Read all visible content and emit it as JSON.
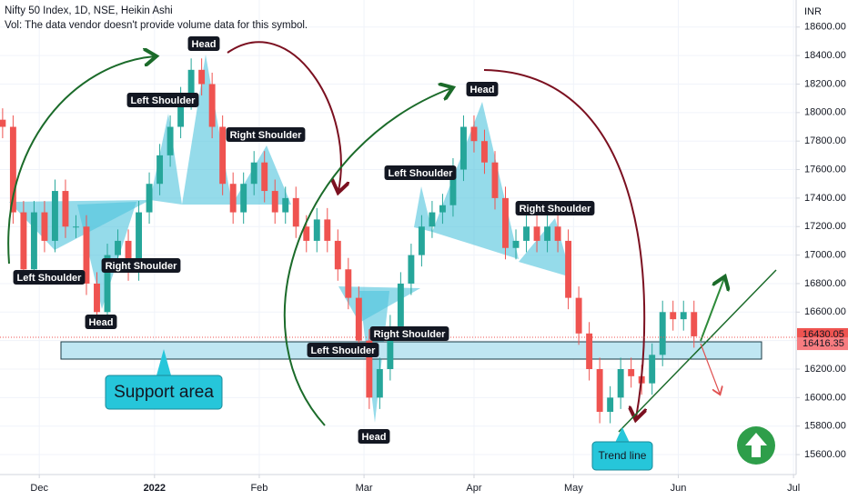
{
  "chart_data": {
    "type": "candlestick",
    "title": "Nifty 50 Index, 1D, NSE, Heikin Ashi",
    "subtitle": "Vol: The data vendor doesn't provide volume data for this symbol.",
    "y_axis_label": "INR",
    "up_color": "#26a69a",
    "down_color": "#ef5350",
    "x": [
      0,
      2,
      4,
      6,
      8,
      10,
      12,
      14,
      16,
      18,
      20,
      22,
      24,
      26,
      28,
      30,
      32,
      34,
      36,
      38,
      40,
      42,
      44,
      46,
      48,
      50,
      52,
      54,
      56,
      58,
      60,
      62,
      64,
      66,
      68,
      70,
      72,
      74,
      76,
      78,
      80,
      82,
      84,
      86,
      88,
      90,
      92,
      94,
      96,
      98,
      100,
      102,
      104,
      106,
      108,
      110,
      112,
      114,
      116,
      118,
      120,
      122,
      124,
      126,
      128,
      130,
      132
    ],
    "open": [
      17950,
      17900,
      17300,
      16900,
      17300,
      17100,
      17450,
      17200,
      17200,
      16800,
      16600,
      17000,
      17100,
      16900,
      17300,
      17500,
      17700,
      17900,
      18100,
      18300,
      18200,
      17900,
      17500,
      17300,
      17500,
      17650,
      17450,
      17300,
      17400,
      17200,
      17100,
      17250,
      17100,
      16900,
      16700,
      16400,
      16000,
      16200,
      16500,
      16800,
      17000,
      17200,
      17300,
      17350,
      17600,
      17900,
      17800,
      17650,
      17400,
      17050,
      17100,
      17200,
      17100,
      17200,
      17100,
      16700,
      16450,
      16200,
      15900,
      16000,
      16200,
      16150,
      16100,
      16300,
      16600,
      16550,
      16600
    ],
    "high": [
      18030,
      17980,
      17380,
      17380,
      17380,
      17530,
      17530,
      17280,
      17280,
      16880,
      17080,
      17180,
      17180,
      17380,
      17580,
      17780,
      17980,
      18180,
      18380,
      18380,
      18280,
      17980,
      17580,
      17580,
      17730,
      17730,
      17530,
      17480,
      17480,
      17280,
      17330,
      17330,
      17180,
      16980,
      16780,
      16480,
      16280,
      16580,
      16880,
      17080,
      17280,
      17380,
      17430,
      17680,
      17980,
      17980,
      17880,
      17730,
      17480,
      17180,
      17280,
      17280,
      17280,
      17280,
      17180,
      16780,
      16530,
      16280,
      16080,
      16280,
      16280,
      16230,
      16380,
      16680,
      16680,
      16680,
      16680
    ],
    "low": [
      17820,
      17220,
      16820,
      16820,
      17020,
      17020,
      17120,
      17120,
      16720,
      16520,
      16520,
      16920,
      16820,
      16820,
      17220,
      17420,
      17620,
      17820,
      18020,
      18120,
      17820,
      17420,
      17220,
      17220,
      17420,
      17370,
      17220,
      17220,
      17120,
      17020,
      17020,
      17020,
      16820,
      16620,
      16320,
      15920,
      15920,
      16120,
      16420,
      16720,
      16920,
      17120,
      17220,
      17270,
      17520,
      17720,
      17570,
      17320,
      16970,
      16970,
      17020,
      17020,
      17020,
      17020,
      16620,
      16370,
      16120,
      15820,
      15820,
      15920,
      16070,
      16020,
      16020,
      16220,
      16470,
      16470,
      16350
    ],
    "close": [
      17900,
      17300,
      16900,
      17300,
      17100,
      17450,
      17200,
      17200,
      16800,
      16600,
      17000,
      17100,
      16900,
      17300,
      17500,
      17700,
      17900,
      18100,
      18300,
      18200,
      17900,
      17500,
      17300,
      17500,
      17650,
      17450,
      17300,
      17400,
      17200,
      17100,
      17250,
      17100,
      16900,
      16700,
      16400,
      16000,
      16200,
      16500,
      16800,
      17000,
      17200,
      17300,
      17350,
      17600,
      17900,
      17800,
      17650,
      17400,
      17050,
      17100,
      17200,
      17100,
      17200,
      17100,
      16700,
      16450,
      16200,
      15900,
      16000,
      16200,
      16150,
      16100,
      16300,
      16600,
      16550,
      16600,
      16430
    ],
    "xlim": [
      -0.5,
      151.5
    ],
    "xticks": [
      {
        "value": 7,
        "label": "Dec"
      },
      {
        "value": 29,
        "label": "2022"
      },
      {
        "value": 49,
        "label": "Feb"
      },
      {
        "value": 69,
        "label": "Mar"
      },
      {
        "value": 90,
        "label": "Apr"
      },
      {
        "value": 109,
        "label": "May"
      },
      {
        "value": 129,
        "label": "Jun"
      },
      {
        "value": 151,
        "label": "Jul"
      }
    ],
    "ylim": [
      15460,
      18790
    ],
    "yticks": [
      {
        "value": 15600,
        "label": "15600.00"
      },
      {
        "value": 15800,
        "label": "15800.00"
      },
      {
        "value": 16000,
        "label": "16000.00"
      },
      {
        "value": 16200,
        "label": "16200.00"
      },
      {
        "value": 16400,
        "label": "16400.00"
      },
      {
        "value": 16600,
        "label": "16600.00"
      },
      {
        "value": 16800,
        "label": "16800.00"
      },
      {
        "value": 17000,
        "label": "17000.00"
      },
      {
        "value": 17200,
        "label": "17200.00"
      },
      {
        "value": 17400,
        "label": "17400.00"
      },
      {
        "value": 17600,
        "label": "17600.00"
      },
      {
        "value": 17800,
        "label": "17800.00"
      },
      {
        "value": 18000,
        "label": "18000.00"
      },
      {
        "value": 18200,
        "label": "18200.00"
      },
      {
        "value": 18400,
        "label": "18400.00"
      },
      {
        "value": 18600,
        "label": "18600.00"
      }
    ],
    "grid": true,
    "price_labels": [
      16430.05,
      16416.35
    ],
    "annotations": [
      "Head",
      "Left Shoulder",
      "Right Shoulder",
      "Left Shoulder",
      "Right Shoulder",
      "Head",
      "Head",
      "Left Shoulder",
      "Right Shoulder",
      "Left Shoulder",
      "Right Shoulder",
      "Head"
    ],
    "support_label": "Support area",
    "trend_label": "Trend line"
  }
}
